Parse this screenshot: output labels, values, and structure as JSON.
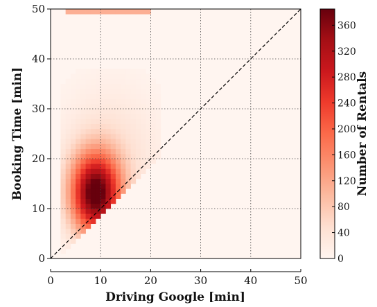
{
  "chart_data": {
    "type": "heatmap",
    "title": "",
    "xlabel": "Driving Google [min]",
    "ylabel": "Booking Time [min]",
    "xlim": [
      0,
      50
    ],
    "ylim": [
      0,
      50
    ],
    "x_ticks": [
      0,
      10,
      20,
      30,
      40,
      50
    ],
    "y_ticks": [
      0,
      10,
      20,
      30,
      40,
      50
    ],
    "grid": true,
    "reference_line": {
      "style": "dashed",
      "from": [
        0,
        0
      ],
      "to": [
        50,
        50
      ]
    },
    "colorbar": {
      "label": "Number of Rentals",
      "min": 0,
      "max": 385,
      "ticks": [
        0,
        40,
        80,
        120,
        160,
        200,
        240,
        280,
        320,
        360
      ],
      "colormap": [
        "#fff5f0",
        "#fee0d2",
        "#fcbba1",
        "#fc9272",
        "#fb6a4a",
        "#ef3b2c",
        "#cb181d",
        "#a50f15",
        "#67000d"
      ]
    },
    "density": {
      "peak_x": 9,
      "peak_y": 13,
      "peak_count": 385,
      "max_x": 22,
      "max_y": 38,
      "cap_row_y": 50,
      "cap_row_x_range": [
        3,
        20
      ]
    }
  }
}
